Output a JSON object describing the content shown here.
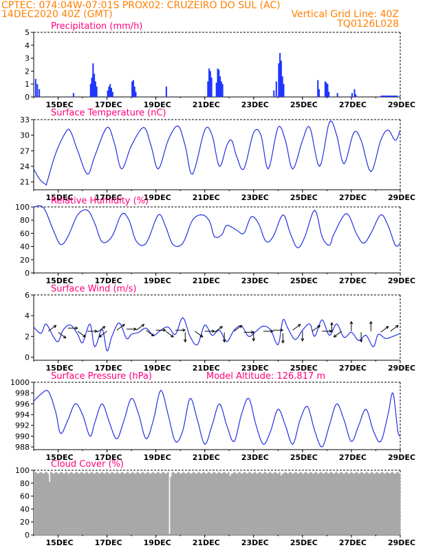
{
  "header": {
    "line1_left": "CPTEC:   074:04W-07:01S   PROX02: CRUZEIRO DO SUL (AC)",
    "line2_left": "14DEC2020 40Z (GMT)",
    "line2_right": "Vertical Grid Line: 40Z",
    "line3_right": "TQ0126L028"
  },
  "colors": {
    "header": "#ff7f00",
    "title": "#ff0080",
    "line": "#2030e0",
    "bar": "#1f35ff",
    "cloud": "#a8a8a8"
  },
  "x_axis": {
    "tick_labels": [
      "15DEC",
      "17DEC",
      "19DEC",
      "21DEC",
      "23DEC",
      "25DEC",
      "27DEC",
      "29DEC"
    ],
    "range_days": [
      0,
      15
    ]
  },
  "chart_data": [
    {
      "id": "precip",
      "type": "bar",
      "title": "Precipitation (mm/h)",
      "ylim": [
        0,
        5
      ],
      "yticks": [
        0,
        1,
        2,
        3,
        4,
        5
      ],
      "points": [
        [
          0.05,
          1.4
        ],
        [
          0.12,
          1.0
        ],
        [
          0.2,
          0.6
        ],
        [
          1.6,
          0.3
        ],
        [
          2.3,
          1.0
        ],
        [
          2.35,
          1.5
        ],
        [
          2.4,
          2.6
        ],
        [
          2.45,
          1.8
        ],
        [
          2.5,
          1.2
        ],
        [
          2.55,
          0.8
        ],
        [
          3.0,
          0.5
        ],
        [
          3.05,
          0.8
        ],
        [
          3.1,
          1.0
        ],
        [
          3.15,
          0.7
        ],
        [
          3.2,
          0.4
        ],
        [
          4.0,
          1.2
        ],
        [
          4.05,
          1.3
        ],
        [
          4.1,
          0.8
        ],
        [
          4.15,
          0.4
        ],
        [
          5.4,
          0.8
        ],
        [
          7.1,
          1.2
        ],
        [
          7.15,
          2.2
        ],
        [
          7.2,
          2.0
        ],
        [
          7.25,
          1.5
        ],
        [
          7.45,
          1.1
        ],
        [
          7.5,
          2.2
        ],
        [
          7.55,
          2.1
        ],
        [
          7.6,
          1.6
        ],
        [
          7.65,
          1.2
        ],
        [
          7.7,
          1.0
        ],
        [
          9.8,
          0.5
        ],
        [
          9.9,
          1.2
        ],
        [
          10.0,
          2.6
        ],
        [
          10.05,
          3.4
        ],
        [
          10.1,
          2.8
        ],
        [
          10.15,
          1.6
        ],
        [
          10.2,
          1.0
        ],
        [
          11.6,
          1.3
        ],
        [
          11.65,
          0.6
        ],
        [
          11.9,
          1.2
        ],
        [
          11.95,
          1.1
        ],
        [
          12.0,
          1.0
        ],
        [
          12.05,
          0.4
        ],
        [
          12.4,
          0.3
        ],
        [
          13.0,
          0.3
        ],
        [
          13.1,
          0.6
        ],
        [
          13.15,
          0.2
        ],
        [
          14.3,
          0.1
        ],
        [
          14.5,
          0.1
        ]
      ]
    },
    {
      "id": "temp",
      "type": "line",
      "title": "Surface Temperature (nC)",
      "ylim": [
        19.5,
        33
      ],
      "yticks": [
        21,
        24,
        27,
        30,
        33
      ],
      "keypoints": [
        [
          0,
          23.5
        ],
        [
          0.25,
          21.5
        ],
        [
          0.5,
          20.5
        ],
        [
          0.55,
          21
        ],
        [
          0.9,
          26.5
        ],
        [
          1.3,
          30.5
        ],
        [
          1.5,
          30.8
        ],
        [
          1.8,
          27
        ],
        [
          2.2,
          22.5
        ],
        [
          2.5,
          26
        ],
        [
          3.0,
          31.5
        ],
        [
          3.3,
          28.5
        ],
        [
          3.6,
          23.5
        ],
        [
          4.0,
          28
        ],
        [
          4.5,
          31.5
        ],
        [
          4.8,
          28
        ],
        [
          5.1,
          23.5
        ],
        [
          5.5,
          29
        ],
        [
          5.9,
          31.8
        ],
        [
          6.2,
          28
        ],
        [
          6.5,
          22.5
        ],
        [
          7.0,
          31
        ],
        [
          7.3,
          30
        ],
        [
          7.6,
          24
        ],
        [
          7.9,
          28
        ],
        [
          8.1,
          29
        ],
        [
          8.3,
          26
        ],
        [
          8.6,
          23.5
        ],
        [
          9.0,
          30.5
        ],
        [
          9.3,
          30
        ],
        [
          9.6,
          23.5
        ],
        [
          10.0,
          31.5
        ],
        [
          10.3,
          29
        ],
        [
          10.6,
          23.5
        ],
        [
          11.0,
          29
        ],
        [
          11.3,
          31.5
        ],
        [
          11.7,
          24
        ],
        [
          12.1,
          32.5
        ],
        [
          12.4,
          30
        ],
        [
          12.7,
          24.5
        ],
        [
          13.1,
          30.5
        ],
        [
          13.4,
          29
        ],
        [
          13.8,
          23
        ],
        [
          14.2,
          29
        ],
        [
          14.5,
          31
        ],
        [
          14.8,
          29
        ],
        [
          15.0,
          31
        ]
      ]
    },
    {
      "id": "rh",
      "type": "line",
      "title": "Relative Humidity (%)",
      "ylim": [
        0,
        100
      ],
      "yticks": [
        0,
        20,
        40,
        60,
        80,
        100
      ],
      "keypoints": [
        [
          0,
          100
        ],
        [
          0.4,
          99
        ],
        [
          0.8,
          65
        ],
        [
          1.1,
          43
        ],
        [
          1.4,
          55
        ],
        [
          1.8,
          88
        ],
        [
          2.2,
          95
        ],
        [
          2.5,
          75
        ],
        [
          2.8,
          47
        ],
        [
          3.2,
          55
        ],
        [
          3.6,
          89
        ],
        [
          3.9,
          80
        ],
        [
          4.2,
          48
        ],
        [
          4.6,
          45
        ],
        [
          5.1,
          88
        ],
        [
          5.4,
          70
        ],
        [
          5.7,
          43
        ],
        [
          6.1,
          45
        ],
        [
          6.5,
          80
        ],
        [
          6.9,
          88
        ],
        [
          7.2,
          78
        ],
        [
          7.4,
          55
        ],
        [
          7.7,
          58
        ],
        [
          7.9,
          72
        ],
        [
          8.3,
          65
        ],
        [
          8.6,
          60
        ],
        [
          8.9,
          85
        ],
        [
          9.2,
          75
        ],
        [
          9.5,
          48
        ],
        [
          9.8,
          55
        ],
        [
          10.2,
          88
        ],
        [
          10.5,
          60
        ],
        [
          10.8,
          38
        ],
        [
          11.1,
          55
        ],
        [
          11.5,
          95
        ],
        [
          11.8,
          55
        ],
        [
          12.1,
          42
        ],
        [
          12.3,
          60
        ],
        [
          12.8,
          90
        ],
        [
          13.2,
          60
        ],
        [
          13.5,
          45
        ],
        [
          13.8,
          60
        ],
        [
          14.2,
          88
        ],
        [
          14.5,
          72
        ],
        [
          14.8,
          42
        ],
        [
          15.0,
          45
        ]
      ]
    },
    {
      "id": "wind",
      "type": "line",
      "title": "Surface Wind (m/s)",
      "ylim": [
        -0.3,
        6
      ],
      "yticks": [
        0,
        2,
        4,
        6
      ],
      "keypoints": [
        [
          0,
          2.9
        ],
        [
          0.3,
          2.3
        ],
        [
          0.5,
          3.2
        ],
        [
          0.8,
          2.0
        ],
        [
          1.0,
          1.5
        ],
        [
          1.2,
          2.6
        ],
        [
          1.5,
          3.1
        ],
        [
          1.8,
          2.2
        ],
        [
          2.0,
          1.4
        ],
        [
          2.3,
          3.2
        ],
        [
          2.5,
          1.0
        ],
        [
          2.8,
          2.7
        ],
        [
          3.0,
          0.6
        ],
        [
          3.2,
          2.0
        ],
        [
          3.5,
          3.3
        ],
        [
          3.8,
          1.8
        ],
        [
          4.0,
          2.2
        ],
        [
          4.3,
          2.4
        ],
        [
          4.6,
          2.8
        ],
        [
          4.9,
          2.1
        ],
        [
          5.2,
          2.6
        ],
        [
          5.5,
          2.9
        ],
        [
          5.8,
          2.2
        ],
        [
          6.1,
          3.8
        ],
        [
          6.4,
          2.0
        ],
        [
          6.7,
          1.2
        ],
        [
          7.0,
          3.1
        ],
        [
          7.3,
          2.1
        ],
        [
          7.6,
          2.6
        ],
        [
          7.9,
          1.5
        ],
        [
          8.2,
          2.6
        ],
        [
          8.5,
          3.0
        ],
        [
          8.8,
          2.0
        ],
        [
          9.1,
          2.5
        ],
        [
          9.4,
          3.0
        ],
        [
          9.7,
          2.6
        ],
        [
          10.0,
          1.2
        ],
        [
          10.2,
          3.6
        ],
        [
          10.4,
          2.8
        ],
        [
          10.7,
          1.7
        ],
        [
          11.0,
          2.6
        ],
        [
          11.3,
          3.2
        ],
        [
          11.5,
          2.0
        ],
        [
          11.8,
          3.6
        ],
        [
          12.1,
          2.1
        ],
        [
          12.4,
          3.2
        ],
        [
          12.7,
          1.9
        ],
        [
          13.0,
          2.4
        ],
        [
          13.3,
          1.6
        ],
        [
          13.6,
          2.1
        ],
        [
          13.9,
          1.0
        ],
        [
          14.1,
          2.2
        ],
        [
          14.4,
          1.8
        ],
        [
          14.7,
          2.0
        ],
        [
          15.0,
          2.3
        ]
      ],
      "arrows": [
        [
          0.6,
          2.5,
          "NE"
        ],
        [
          1.0,
          2.4,
          "SE"
        ],
        [
          1.4,
          2.8,
          "E"
        ],
        [
          1.8,
          2.5,
          "SE"
        ],
        [
          2.2,
          2.5,
          "E"
        ],
        [
          2.6,
          2.4,
          "NE"
        ],
        [
          3.0,
          2.5,
          "SW"
        ],
        [
          3.4,
          2.6,
          "NE"
        ],
        [
          3.8,
          2.7,
          "E"
        ],
        [
          4.2,
          2.6,
          "NE"
        ],
        [
          4.6,
          2.6,
          "SE"
        ],
        [
          5.0,
          2.6,
          "E"
        ],
        [
          5.4,
          2.5,
          "SE"
        ],
        [
          5.8,
          2.6,
          "E"
        ],
        [
          6.2,
          2.4,
          "S"
        ],
        [
          6.6,
          2.5,
          "SE"
        ],
        [
          7.0,
          2.5,
          "E"
        ],
        [
          7.4,
          2.4,
          "NE"
        ],
        [
          7.8,
          2.4,
          "S"
        ],
        [
          8.2,
          2.5,
          "NE"
        ],
        [
          8.6,
          2.4,
          "E"
        ],
        [
          9.0,
          2.5,
          "S"
        ],
        [
          9.4,
          2.5,
          "E"
        ],
        [
          9.8,
          2.6,
          "E"
        ],
        [
          10.2,
          2.3,
          "S"
        ],
        [
          10.6,
          2.6,
          "NE"
        ],
        [
          11.0,
          2.5,
          "S"
        ],
        [
          11.4,
          2.5,
          "NE"
        ],
        [
          11.8,
          2.5,
          "E"
        ],
        [
          12.2,
          2.4,
          "N"
        ],
        [
          12.6,
          2.5,
          "SW"
        ],
        [
          13.0,
          2.5,
          "N"
        ],
        [
          13.4,
          2.4,
          "S"
        ],
        [
          13.8,
          2.5,
          "N"
        ],
        [
          14.2,
          2.4,
          "NE"
        ],
        [
          14.6,
          2.5,
          "NE"
        ]
      ]
    },
    {
      "id": "pres",
      "type": "line",
      "title": "Surface Pressure (hPa)",
      "subtitle": "Model Altitude: 126.817 m",
      "ylim": [
        987.5,
        1000
      ],
      "yticks": [
        988,
        990,
        992,
        994,
        996,
        998,
        1000
      ],
      "keypoints": [
        [
          0,
          996.5
        ],
        [
          0.3,
          997.8
        ],
        [
          0.6,
          998.3
        ],
        [
          0.9,
          994.5
        ],
        [
          1.1,
          990.5
        ],
        [
          1.4,
          993
        ],
        [
          1.7,
          996
        ],
        [
          2.0,
          994
        ],
        [
          2.3,
          990
        ],
        [
          2.5,
          992.5
        ],
        [
          2.8,
          996
        ],
        [
          3.1,
          992.5
        ],
        [
          3.4,
          989.5
        ],
        [
          3.7,
          993
        ],
        [
          4.0,
          997
        ],
        [
          4.3,
          994
        ],
        [
          4.6,
          989.5
        ],
        [
          4.9,
          993
        ],
        [
          5.2,
          998.5
        ],
        [
          5.5,
          994
        ],
        [
          5.8,
          989
        ],
        [
          6.1,
          991
        ],
        [
          6.4,
          997
        ],
        [
          6.7,
          993
        ],
        [
          7.0,
          988.5
        ],
        [
          7.3,
          992
        ],
        [
          7.6,
          996
        ],
        [
          7.9,
          992
        ],
        [
          8.2,
          989
        ],
        [
          8.5,
          994
        ],
        [
          8.8,
          997
        ],
        [
          9.1,
          992
        ],
        [
          9.4,
          988.5
        ],
        [
          9.7,
          991
        ],
        [
          10.0,
          995
        ],
        [
          10.3,
          992
        ],
        [
          10.6,
          988.5
        ],
        [
          10.9,
          993
        ],
        [
          11.2,
          995.5
        ],
        [
          11.5,
          991
        ],
        [
          11.8,
          988
        ],
        [
          12.1,
          992
        ],
        [
          12.4,
          996
        ],
        [
          12.7,
          993
        ],
        [
          13.0,
          989
        ],
        [
          13.3,
          992
        ],
        [
          13.6,
          995
        ],
        [
          13.9,
          991
        ],
        [
          14.2,
          989
        ],
        [
          14.5,
          994
        ],
        [
          14.7,
          998
        ],
        [
          14.9,
          991
        ],
        [
          15.0,
          990
        ]
      ]
    },
    {
      "id": "cloud",
      "type": "area",
      "title": "Cloud Cover (%)",
      "ylim": [
        0,
        100
      ],
      "yticks": [
        0,
        20,
        40,
        60,
        80,
        100
      ],
      "base_value": 96,
      "dips": [
        [
          0.6,
          82
        ],
        [
          5.5,
          88
        ],
        [
          5.55,
          0
        ],
        [
          5.6,
          90
        ],
        [
          8.0,
          91
        ],
        [
          10.1,
          92
        ]
      ]
    }
  ]
}
